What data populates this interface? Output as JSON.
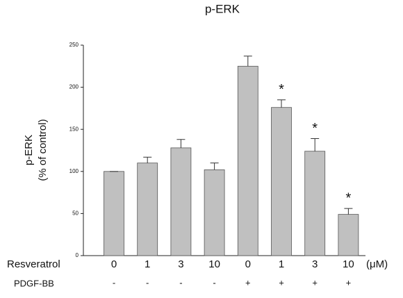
{
  "chart_data": {
    "type": "bar",
    "title": "p-ERK",
    "ylabel": [
      "p-ERK",
      "(% of control)"
    ],
    "row_labels": [
      "Resveratrol",
      "PDGF-BB"
    ],
    "categories": [
      "0",
      "1",
      "3",
      "10",
      "0",
      "1",
      "3",
      "10"
    ],
    "secondary_categories": [
      "-",
      "-",
      "-",
      "-",
      "+",
      "+",
      "+",
      "+"
    ],
    "unit": "(μM)",
    "values": [
      100,
      110,
      128,
      102,
      225,
      176,
      124,
      49
    ],
    "errors": [
      0,
      7,
      10,
      8,
      12,
      9,
      15,
      7
    ],
    "annotations": [
      null,
      null,
      null,
      null,
      null,
      "*",
      "*",
      "*"
    ],
    "color": "#c0c0c0",
    "ylim": [
      0,
      250
    ],
    "yticks": [
      0,
      50,
      100,
      150,
      200,
      250
    ],
    "grid": false
  }
}
